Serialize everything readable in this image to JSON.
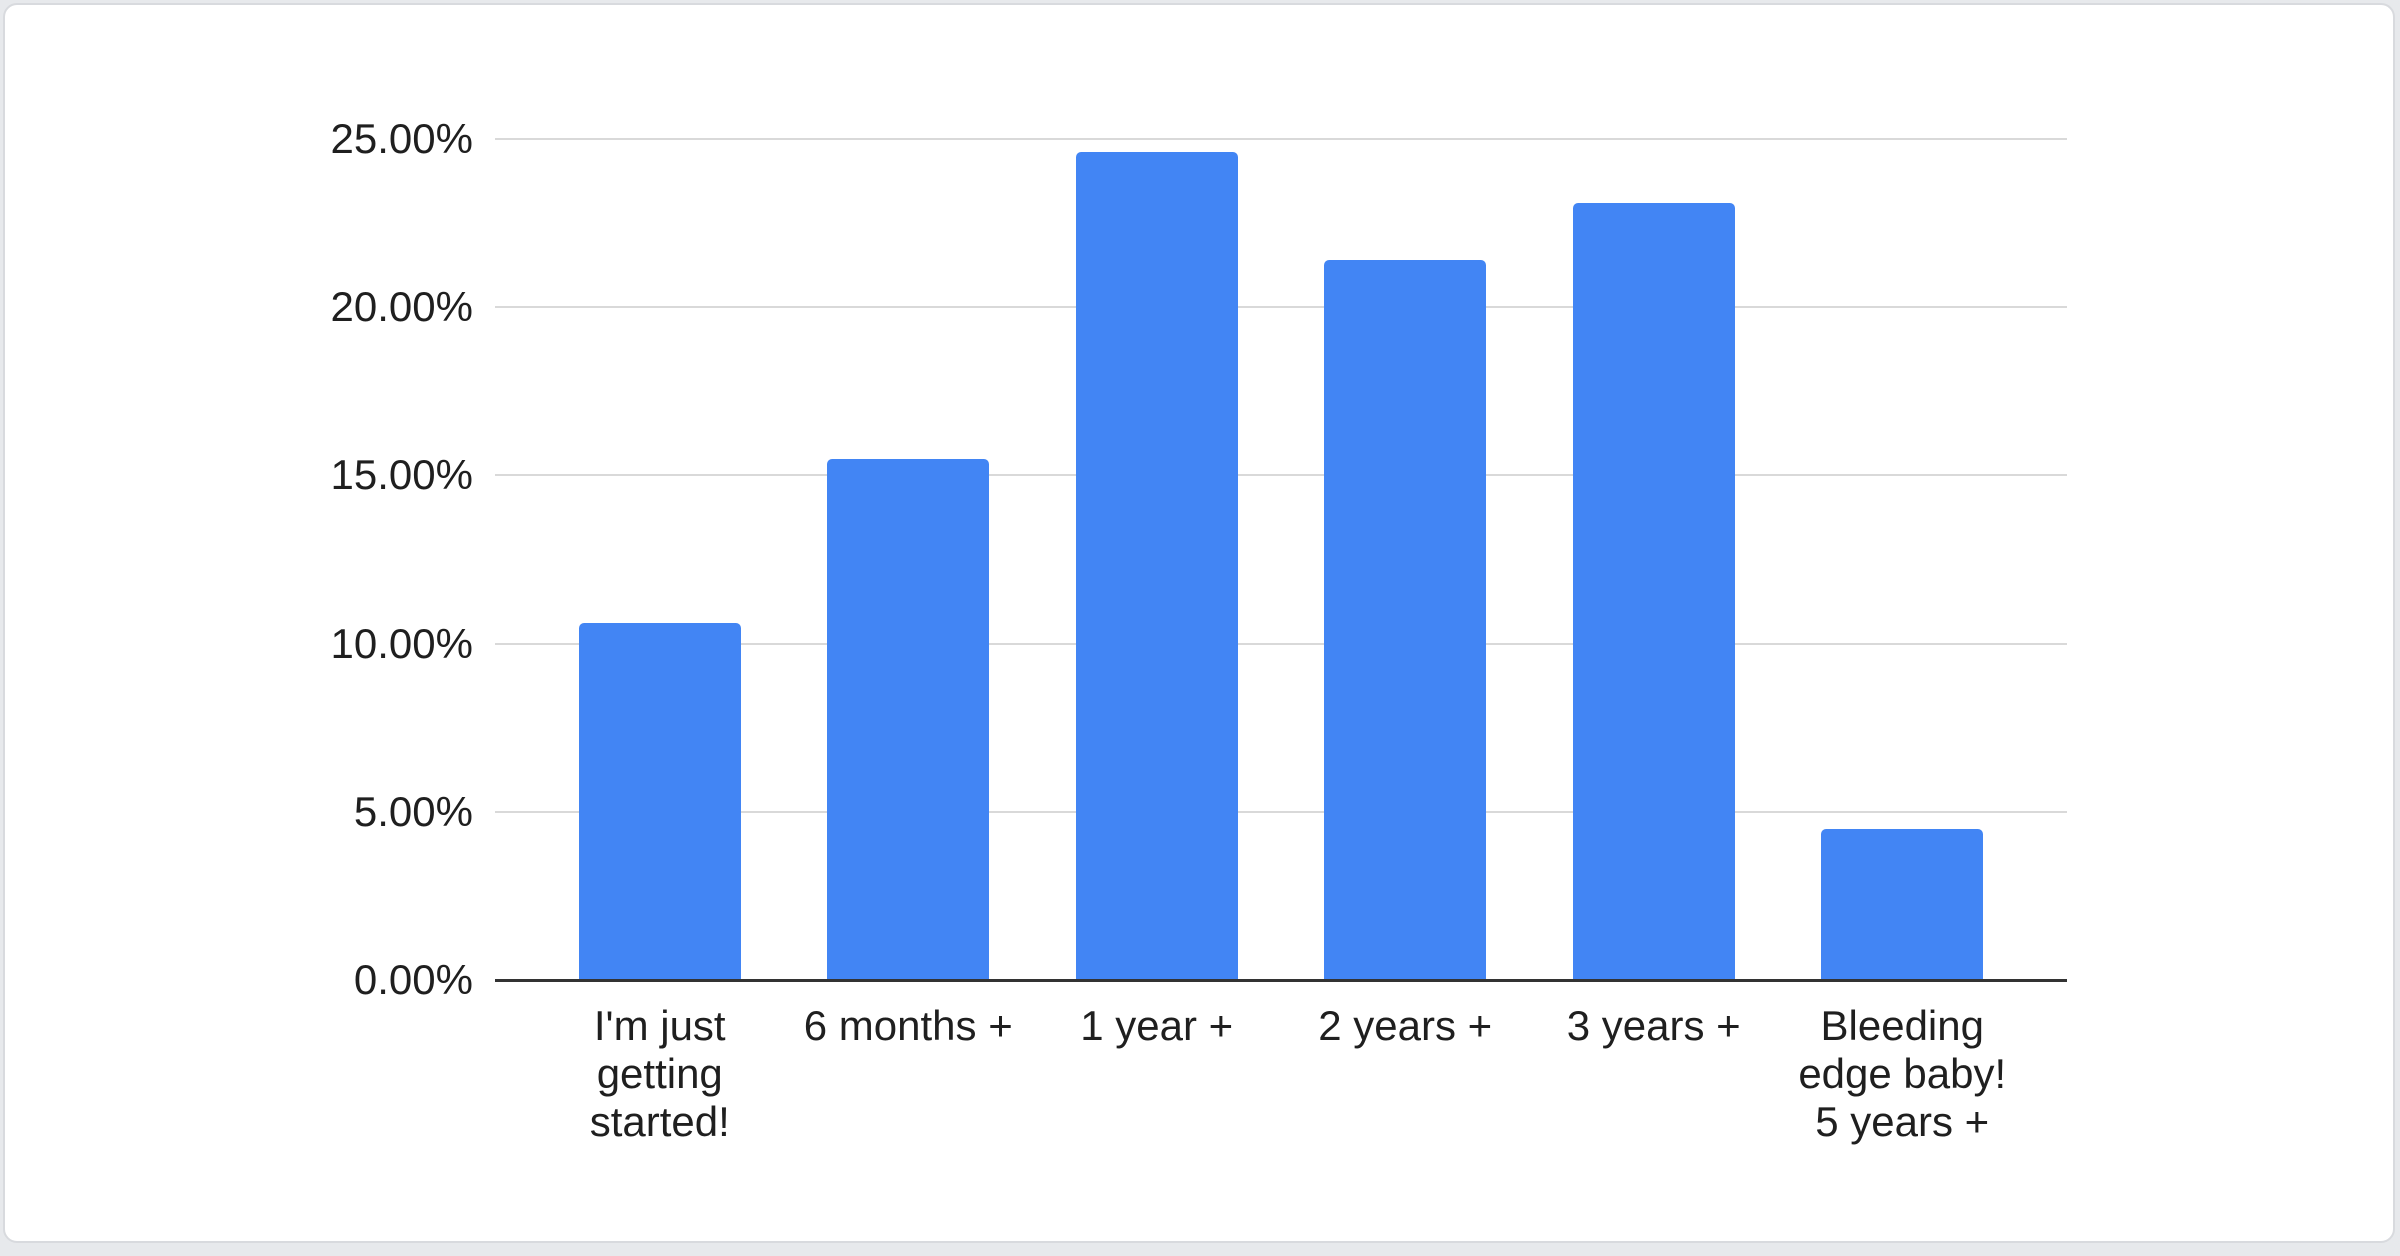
{
  "page": {
    "background_color": "#e7e9ec"
  },
  "card": {
    "background_color": "#ffffff",
    "border_color": "#d8dade"
  },
  "chart_data": {
    "type": "bar",
    "categories": [
      "I'm just\ngetting\nstarted!",
      "6 months +",
      "1 year +",
      "2 years +",
      "3 years +",
      "Bleeding\nedge baby!\n5 years +"
    ],
    "values": [
      10.6,
      15.5,
      24.6,
      21.4,
      23.1,
      4.5
    ],
    "value_unit": "%",
    "ylim": [
      0,
      25
    ],
    "grid": true,
    "y_ticks": [
      {
        "label": "25.00%",
        "value": 25
      },
      {
        "label": "20.00%",
        "value": 20
      },
      {
        "label": "15.00%",
        "value": 15
      },
      {
        "label": "10.00%",
        "value": 10
      },
      {
        "label": "5.00%",
        "value": 5
      },
      {
        "label": "0.00%",
        "value": 0
      }
    ],
    "bar_color": "#4285F4",
    "gridline_color": "#d9d9d9",
    "axis_line_color": "#333333",
    "text_color": "#1f1f1f"
  }
}
